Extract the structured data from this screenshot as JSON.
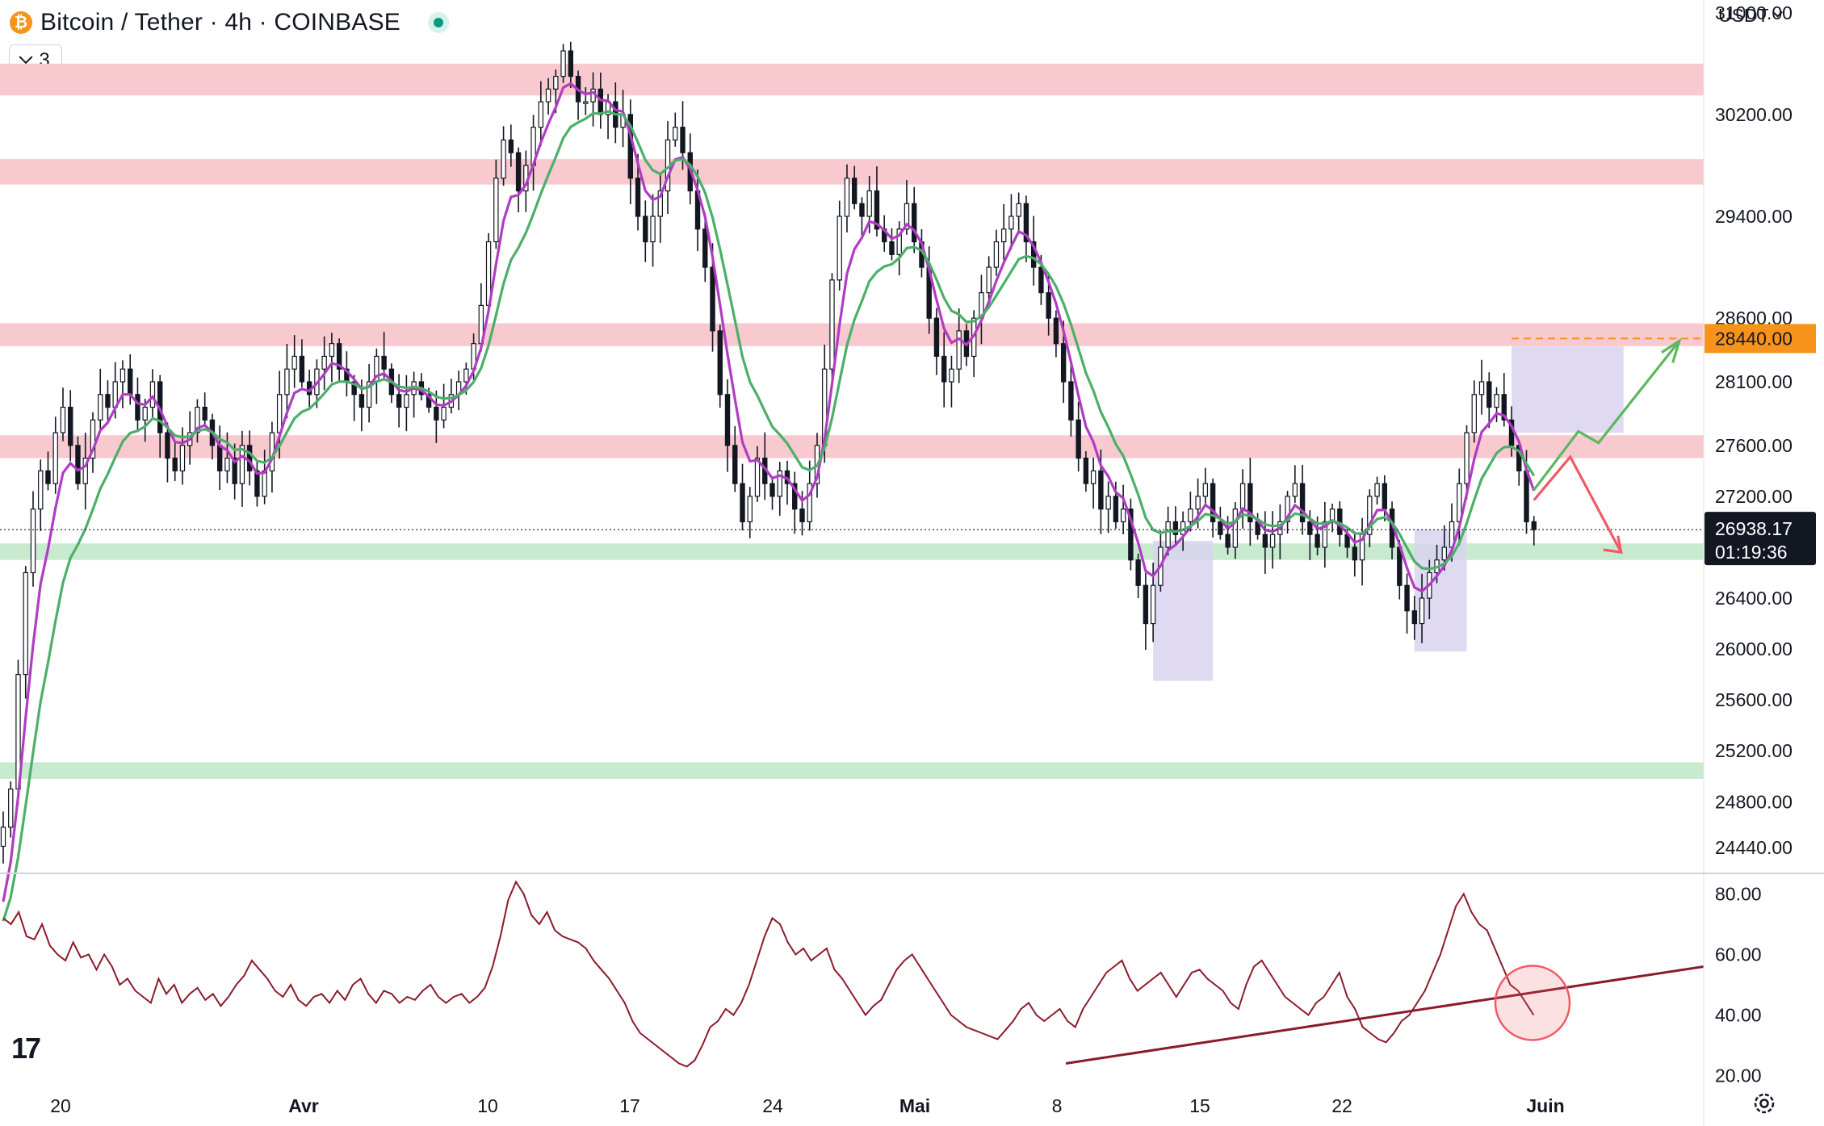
{
  "header": {
    "symbol_title": "Bitcoin / Tether · 4h · COINBASE",
    "coin_glyph": "₿",
    "indicator_count": "3",
    "currency": "USDT"
  },
  "icons": [
    "bitcoin-icon",
    "live-status-icon",
    "chevron-down-icon",
    "tradingview-logo-icon",
    "settings-icon"
  ],
  "logo_text": "17",
  "colors": {
    "resistance_zone": "#f9c9d0",
    "support_zone": "#c8ebd0",
    "ema_fast": "#b03cc4",
    "ema_slow": "#4caf6a",
    "rsi_line": "#8b1a2a",
    "arrow_up": "#5cb85c",
    "arrow_down": "#f05a66",
    "highlight_box": "#d9d4f0",
    "orange_level": "#f7931a"
  },
  "chart_data": [
    {
      "type": "candlestick",
      "title": "Bitcoin / Tether · 4h · COINBASE",
      "y_axis_ticks": [
        "31000.00",
        "30200.00",
        "29400.00",
        "28600.00",
        "28100.00",
        "27600.00",
        "27200.00",
        "26400.00",
        "26000.00",
        "25600.00",
        "25200.00",
        "24800.00",
        "24440.00"
      ],
      "ylim": [
        24250,
        31100
      ],
      "x_axis_ticks": [
        "20",
        "Avr",
        "10",
        "17",
        "24",
        "Mai",
        "8",
        "15",
        "22",
        "Juin"
      ],
      "last_price": "26938.17",
      "countdown": "01:19:36",
      "marked_level": "28440.00",
      "resistance_zones": [
        [
          30350,
          30600
        ],
        [
          29650,
          29850
        ],
        [
          28380,
          28560
        ],
        [
          27500,
          27680
        ]
      ],
      "support_zones": [
        [
          26700,
          26830
        ],
        [
          24980,
          25110
        ]
      ],
      "close_series": [
        24600,
        24900,
        25800,
        26600,
        27100,
        27400,
        27300,
        27700,
        27900,
        27600,
        27300,
        27500,
        27800,
        28000,
        27900,
        28100,
        28200,
        28000,
        27800,
        27900,
        28100,
        27700,
        27500,
        27400,
        27600,
        27700,
        27900,
        27800,
        27600,
        27400,
        27500,
        27300,
        27600,
        27400,
        27200,
        27400,
        27700,
        28000,
        28200,
        28300,
        28100,
        28000,
        28200,
        28300,
        28400,
        28200,
        28100,
        28000,
        27900,
        28100,
        28300,
        28200,
        28000,
        27900,
        28000,
        28100,
        28000,
        27900,
        27800,
        27900,
        28000,
        28100,
        28200,
        28400,
        28700,
        29200,
        29700,
        30000,
        29900,
        29600,
        29800,
        30100,
        30300,
        30400,
        30500,
        30700,
        30500,
        30300,
        30300,
        30400,
        30200,
        30300,
        30100,
        30200,
        29700,
        29400,
        29200,
        29400,
        29600,
        30000,
        30100,
        29900,
        29600,
        29300,
        29000,
        28500,
        28000,
        27600,
        27300,
        27000,
        27200,
        27500,
        27300,
        27200,
        27400,
        27300,
        27100,
        27000,
        27300,
        27600,
        28200,
        28900,
        29400,
        29700,
        29500,
        29400,
        29600,
        29300,
        29200,
        29100,
        29300,
        29500,
        29200,
        29000,
        28600,
        28300,
        28100,
        28200,
        28500,
        28300,
        28600,
        28800,
        29000,
        29200,
        29300,
        29400,
        29500,
        29200,
        29000,
        28800,
        28600,
        28400,
        28100,
        27800,
        27500,
        27300,
        27400,
        27100,
        27200,
        27000,
        27100,
        26700,
        26500,
        26200,
        26500,
        26800,
        27000,
        26900,
        27000,
        27100,
        27200,
        27300,
        27000,
        26900,
        26800,
        27100,
        27300,
        27000,
        26900,
        26800,
        26900,
        27000,
        27200,
        27300,
        27000,
        26900,
        26800,
        27000,
        27100,
        26900,
        26800,
        26700,
        26900,
        27200,
        27300,
        27100,
        26800,
        26500,
        26300,
        26200,
        26400,
        26600,
        26700,
        26800,
        27000,
        27300,
        27700,
        28000,
        28100,
        27900,
        28000,
        27800,
        27600,
        27400,
        27000,
        26938
      ]
    },
    {
      "type": "line",
      "y_axis_ticks": [
        "80.00",
        "60.00",
        "40.00",
        "20.00"
      ],
      "ylim": [
        18,
        86
      ],
      "values": [
        72,
        70,
        74,
        66,
        65,
        70,
        63,
        60,
        58,
        64,
        59,
        60,
        55,
        60,
        56,
        50,
        52,
        48,
        46,
        44,
        52,
        47,
        50,
        44,
        47,
        49,
        45,
        47,
        43,
        46,
        50,
        53,
        58,
        55,
        52,
        48,
        46,
        50,
        45,
        43,
        46,
        47,
        44,
        48,
        45,
        50,
        52,
        47,
        44,
        48,
        47,
        44,
        46,
        45,
        48,
        50,
        46,
        44,
        46,
        47,
        44,
        46,
        49,
        56,
        66,
        78,
        84,
        80,
        73,
        70,
        74,
        68,
        66,
        65,
        64,
        62,
        58,
        55,
        52,
        48,
        44,
        38,
        34,
        32,
        30,
        28,
        26,
        24,
        23,
        25,
        30,
        36,
        38,
        42,
        40,
        44,
        50,
        58,
        66,
        72,
        70,
        64,
        60,
        62,
        58,
        60,
        62,
        55,
        52,
        48,
        44,
        40,
        43,
        45,
        50,
        55,
        58,
        60,
        56,
        52,
        48,
        44,
        40,
        38,
        36,
        35,
        34,
        33,
        32,
        35,
        38,
        42,
        44,
        40,
        38,
        40,
        42,
        38,
        36,
        42,
        46,
        50,
        54,
        56,
        58,
        52,
        48,
        50,
        52,
        54,
        50,
        46,
        50,
        54,
        55,
        52,
        50,
        48,
        44,
        42,
        50,
        56,
        58,
        54,
        50,
        46,
        44,
        42,
        40,
        44,
        46,
        50,
        54,
        46,
        42,
        36,
        34,
        32,
        31,
        34,
        38,
        40,
        44,
        48,
        54,
        60,
        68,
        76,
        80,
        74,
        70,
        68,
        62,
        56,
        50,
        48,
        44,
        40
      ],
      "trendline": {
        "start": 24,
        "end": 56
      }
    }
  ]
}
